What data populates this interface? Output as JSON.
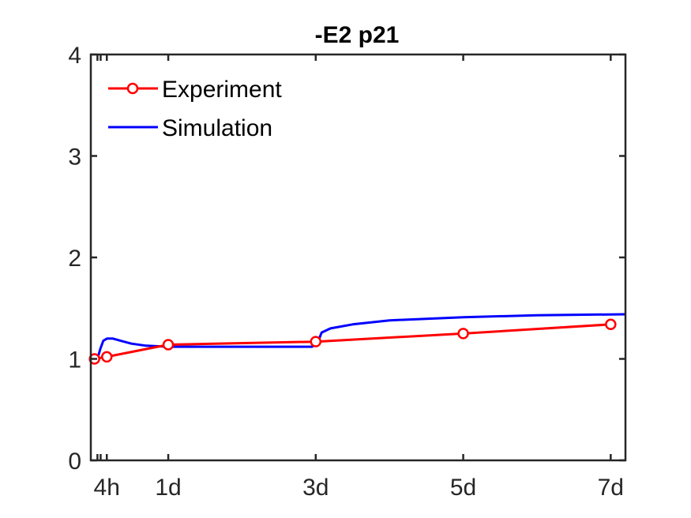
{
  "chart_data": {
    "type": "line",
    "title": "-E2 p21",
    "xlabel": "",
    "ylabel": "",
    "xlim": [
      -0.05,
      7.2
    ],
    "ylim": [
      0,
      4
    ],
    "x_ticks": [
      {
        "value": 0.1667,
        "label": "4h"
      },
      {
        "value": 1,
        "label": "1d"
      },
      {
        "value": 3,
        "label": "3d"
      },
      {
        "value": 5,
        "label": "5d"
      },
      {
        "value": 7,
        "label": "7d"
      }
    ],
    "x_minor_ticks": [
      0.04,
      0.0833,
      0.1667
    ],
    "y_ticks": [
      {
        "value": 0,
        "label": "0"
      },
      {
        "value": 1,
        "label": "1"
      },
      {
        "value": 2,
        "label": "2"
      },
      {
        "value": 3,
        "label": "3"
      },
      {
        "value": 4,
        "label": "4"
      }
    ],
    "grid": false,
    "legend": {
      "location": "top-left"
    },
    "series": [
      {
        "name": "Experiment",
        "color": "#ff0000",
        "marker": "circle",
        "points": [
          [
            0,
            1.0
          ],
          [
            0.1667,
            1.02
          ],
          [
            1,
            1.14
          ],
          [
            3,
            1.17
          ],
          [
            5,
            1.25
          ],
          [
            7,
            1.34
          ]
        ]
      },
      {
        "name": "Simulation",
        "color": "#0000ff",
        "marker": "none",
        "points": [
          [
            0,
            1.0
          ],
          [
            0.04,
            1.0
          ],
          [
            0.08,
            1.1
          ],
          [
            0.12,
            1.18
          ],
          [
            0.17,
            1.2
          ],
          [
            0.25,
            1.2
          ],
          [
            0.35,
            1.18
          ],
          [
            0.5,
            1.15
          ],
          [
            0.7,
            1.13
          ],
          [
            1.0,
            1.12
          ],
          [
            2.0,
            1.12
          ],
          [
            2.95,
            1.12
          ],
          [
            3.02,
            1.15
          ],
          [
            3.08,
            1.26
          ],
          [
            3.2,
            1.3
          ],
          [
            3.5,
            1.34
          ],
          [
            4.0,
            1.38
          ],
          [
            5.0,
            1.41
          ],
          [
            6.0,
            1.43
          ],
          [
            7.2,
            1.44
          ]
        ]
      }
    ]
  }
}
